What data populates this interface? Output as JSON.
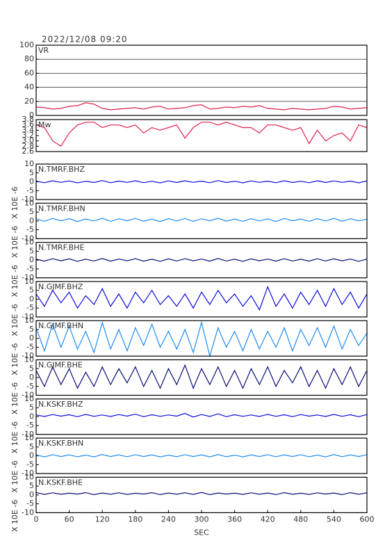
{
  "chart_data": [
    {
      "type": "line",
      "title": "2022/12/08 09:20",
      "label": "VR",
      "xlim": [
        0,
        600
      ],
      "ylim": [
        0,
        100
      ],
      "yticks": [
        0,
        20,
        40,
        60,
        80,
        100
      ],
      "grid": true,
      "x": [
        0,
        15,
        30,
        45,
        60,
        75,
        90,
        105,
        120,
        135,
        150,
        165,
        180,
        195,
        210,
        225,
        240,
        255,
        270,
        285,
        300,
        315,
        330,
        345,
        360,
        375,
        390,
        405,
        420,
        435,
        450,
        465,
        480,
        495,
        510,
        525,
        540,
        555,
        570,
        585,
        600
      ],
      "series": [
        {
          "name": "VR",
          "color": "#e0204a",
          "values": [
            12,
            11,
            9,
            10,
            13,
            14,
            18,
            16,
            10,
            8,
            9,
            10,
            11,
            9,
            12,
            13,
            9,
            10,
            11,
            14,
            15,
            9,
            10,
            12,
            11,
            13,
            12,
            14,
            10,
            9,
            8,
            10,
            9,
            8,
            9,
            10,
            13,
            12,
            9,
            10,
            11
          ]
        }
      ]
    },
    {
      "type": "line",
      "label": "Mw",
      "xlim": [
        0,
        600
      ],
      "ylim": [
        2.6,
        3.8
      ],
      "yticks": [
        2.6,
        2.8,
        {
          "value": 3,
          "label": "3.0"
        },
        3.2,
        3.4,
        3.6,
        3.8
      ],
      "grid": false,
      "x": [
        0,
        15,
        30,
        45,
        60,
        75,
        90,
        105,
        120,
        135,
        150,
        165,
        180,
        195,
        210,
        225,
        240,
        255,
        270,
        285,
        300,
        315,
        330,
        345,
        360,
        375,
        390,
        405,
        420,
        435,
        450,
        465,
        480,
        495,
        510,
        525,
        540,
        555,
        570,
        585,
        600
      ],
      "series": [
        {
          "name": "Mw",
          "color": "#e0204a",
          "values": [
            3.6,
            3.5,
            3.0,
            2.8,
            3.3,
            3.6,
            3.7,
            3.7,
            3.5,
            3.6,
            3.6,
            3.5,
            3.6,
            3.3,
            3.5,
            3.4,
            3.5,
            3.6,
            3.1,
            3.5,
            3.7,
            3.7,
            3.6,
            3.7,
            3.6,
            3.5,
            3.5,
            3.3,
            3.6,
            3.6,
            3.5,
            3.4,
            3.5,
            2.9,
            3.4,
            3.0,
            3.2,
            3.3,
            3.0,
            3.6,
            3.5
          ]
        }
      ]
    },
    {
      "type": "line",
      "label": "N.TMRF.BHZ",
      "ylabel": "X 10E -6",
      "xlim": [
        0,
        600
      ],
      "ylim": [
        -10,
        10
      ],
      "yticks": [
        -10,
        -5,
        0,
        5,
        10
      ],
      "x": [
        0,
        15,
        30,
        45,
        60,
        75,
        90,
        105,
        120,
        135,
        150,
        165,
        180,
        195,
        210,
        225,
        240,
        255,
        270,
        285,
        300,
        315,
        330,
        345,
        360,
        375,
        390,
        405,
        420,
        435,
        450,
        465,
        480,
        495,
        510,
        525,
        540,
        555,
        570,
        585,
        600
      ],
      "series": [
        {
          "name": "N.TMRF.BHZ",
          "color": "#0a0ae0",
          "values": [
            0.4,
            -0.5,
            0.6,
            -0.3,
            0.5,
            -0.6,
            0.3,
            -0.4,
            0.7,
            -0.5,
            0.4,
            -0.3,
            0.6,
            -0.5,
            0.3,
            -0.6,
            0.5,
            -0.4,
            0.6,
            -0.3,
            0.4,
            -0.5,
            0.7,
            -0.4,
            0.3,
            -0.6,
            0.5,
            -0.3,
            0.4,
            -0.5,
            0.6,
            -0.4,
            0.3,
            -0.5,
            0.6,
            -0.4,
            0.5,
            -0.3,
            0.4,
            -0.6,
            0.5
          ]
        }
      ]
    },
    {
      "type": "line",
      "label": "N.TMRF.BHN",
      "ylabel": "X 10E -6",
      "xlim": [
        0,
        600
      ],
      "ylim": [
        -10,
        10
      ],
      "yticks": [
        -10,
        -5,
        0,
        5,
        10
      ],
      "x": [
        0,
        15,
        30,
        45,
        60,
        75,
        90,
        105,
        120,
        135,
        150,
        165,
        180,
        195,
        210,
        225,
        240,
        255,
        270,
        285,
        300,
        315,
        330,
        345,
        360,
        375,
        390,
        405,
        420,
        435,
        450,
        465,
        480,
        495,
        510,
        525,
        540,
        555,
        570,
        585,
        600
      ],
      "series": [
        {
          "name": "N.TMRF.BHN",
          "color": "#1e8cf0",
          "values": [
            1.2,
            -0.2,
            1.4,
            0.1,
            1.3,
            -0.3,
            1.1,
            0.0,
            1.5,
            -0.2,
            1.2,
            0.1,
            1.4,
            -0.1,
            1.0,
            -0.3,
            1.3,
            0.0,
            1.4,
            -0.2,
            1.2,
            0.1,
            1.5,
            -0.1,
            1.1,
            -0.2,
            1.3,
            0.0,
            1.2,
            -0.3,
            1.4,
            0.1,
            1.1,
            -0.2,
            1.3,
            0.0,
            1.5,
            -0.1,
            1.2,
            0.1,
            1.0
          ]
        }
      ]
    },
    {
      "type": "line",
      "label": "N.TMRF.BHE",
      "ylabel": "X 10E -6",
      "xlim": [
        0,
        600
      ],
      "ylim": [
        -10,
        10
      ],
      "yticks": [
        -10,
        -5,
        0,
        5,
        10
      ],
      "x": [
        0,
        15,
        30,
        45,
        60,
        75,
        90,
        105,
        120,
        135,
        150,
        165,
        180,
        195,
        210,
        225,
        240,
        255,
        270,
        285,
        300,
        315,
        330,
        345,
        360,
        375,
        390,
        405,
        420,
        435,
        450,
        465,
        480,
        495,
        510,
        525,
        540,
        555,
        570,
        585,
        600
      ],
      "series": [
        {
          "name": "N.TMRF.BHE",
          "color": "#0a0a78",
          "values": [
            0.6,
            -0.6,
            0.8,
            -0.4,
            0.7,
            -0.7,
            0.5,
            -0.5,
            0.9,
            -0.6,
            0.6,
            -0.4,
            0.8,
            -0.6,
            0.5,
            -0.7,
            0.7,
            -0.5,
            0.8,
            -0.4,
            0.6,
            -0.6,
            0.9,
            -0.5,
            0.5,
            -0.7,
            0.7,
            -0.4,
            0.6,
            -0.6,
            0.8,
            -0.5,
            0.5,
            -0.6,
            0.8,
            -0.5,
            0.7,
            -0.4,
            0.6,
            -0.7,
            0.6
          ]
        }
      ]
    },
    {
      "type": "line",
      "label": "N.GJMF.BHZ",
      "ylabel": "X 10E -6",
      "xlim": [
        0,
        600
      ],
      "ylim": [
        -10,
        10
      ],
      "yticks": [
        -10,
        -5,
        0,
        5,
        10
      ],
      "x": [
        0,
        15,
        30,
        45,
        60,
        75,
        90,
        105,
        120,
        135,
        150,
        165,
        180,
        195,
        210,
        225,
        240,
        255,
        270,
        285,
        300,
        315,
        330,
        345,
        360,
        375,
        390,
        405,
        420,
        435,
        450,
        465,
        480,
        495,
        510,
        525,
        540,
        555,
        570,
        585,
        600
      ],
      "series": [
        {
          "name": "N.GJMF.BHZ",
          "color": "#0a0ae0",
          "values": [
            3,
            -4,
            5,
            -2,
            4,
            -5,
            2,
            -3,
            6,
            -4,
            3,
            -5,
            4,
            -2,
            5,
            -3,
            2,
            -4,
            3,
            -5,
            4,
            -3,
            5,
            -2,
            3,
            -4,
            2,
            -6,
            7,
            -4,
            3,
            -5,
            4,
            -3,
            5,
            -4,
            6,
            -3,
            4,
            -5,
            3
          ]
        }
      ]
    },
    {
      "type": "line",
      "label": "N.GJMF.BHN",
      "ylabel": "X 10E -6",
      "xlim": [
        0,
        600
      ],
      "ylim": [
        -10,
        10
      ],
      "yticks": [
        -10,
        -5,
        0,
        5,
        10
      ],
      "x": [
        0,
        15,
        30,
        45,
        60,
        75,
        90,
        105,
        120,
        135,
        150,
        165,
        180,
        195,
        210,
        225,
        240,
        255,
        270,
        285,
        300,
        315,
        330,
        345,
        360,
        375,
        390,
        405,
        420,
        435,
        450,
        465,
        480,
        495,
        510,
        525,
        540,
        555,
        570,
        585,
        600
      ],
      "series": [
        {
          "name": "N.GJMF.BHN",
          "color": "#1e8cf0",
          "values": [
            6,
            -7,
            8,
            -5,
            7,
            -6,
            4,
            -8,
            9,
            -6,
            5,
            -7,
            6,
            -4,
            8,
            -5,
            4,
            -6,
            5,
            -8,
            9,
            -10,
            6,
            -5,
            4,
            -7,
            5,
            -6,
            4,
            -5,
            6,
            -7,
            5,
            -4,
            6,
            -5,
            7,
            -6,
            5,
            -4,
            3
          ]
        }
      ]
    },
    {
      "type": "line",
      "label": "N.GJMF.BHE",
      "ylabel": "X 10E -6",
      "xlim": [
        0,
        600
      ],
      "ylim": [
        -10,
        10
      ],
      "yticks": [
        -10,
        -5,
        0,
        5,
        10
      ],
      "x": [
        0,
        15,
        30,
        45,
        60,
        75,
        90,
        105,
        120,
        135,
        150,
        165,
        180,
        195,
        210,
        225,
        240,
        255,
        270,
        285,
        300,
        315,
        330,
        345,
        360,
        375,
        390,
        405,
        420,
        435,
        450,
        465,
        480,
        495,
        510,
        525,
        540,
        555,
        570,
        585,
        600
      ],
      "series": [
        {
          "name": "N.GJMF.BHE",
          "color": "#0a0a78",
          "values": [
            4,
            -5,
            6,
            -4,
            5,
            -6,
            3,
            -5,
            6,
            -4,
            5,
            -3,
            6,
            -5,
            4,
            -6,
            5,
            -4,
            7,
            -6,
            5,
            -4,
            6,
            -5,
            4,
            -6,
            5,
            -4,
            6,
            -5,
            4,
            -3,
            6,
            -5,
            4,
            -6,
            5,
            -4,
            6,
            -5,
            4
          ]
        }
      ]
    },
    {
      "type": "line",
      "label": "N.KSKF.BHZ",
      "ylabel": "X 10E -6",
      "xlim": [
        0,
        600
      ],
      "ylim": [
        -10,
        10
      ],
      "yticks": [
        -10,
        -5,
        0,
        5,
        10
      ],
      "x": [
        0,
        15,
        30,
        45,
        60,
        75,
        90,
        105,
        120,
        135,
        150,
        165,
        180,
        195,
        210,
        225,
        240,
        255,
        270,
        285,
        300,
        315,
        330,
        345,
        360,
        375,
        390,
        405,
        420,
        435,
        450,
        465,
        480,
        495,
        510,
        525,
        540,
        555,
        570,
        585,
        600
      ],
      "series": [
        {
          "name": "N.KSKF.BHZ",
          "color": "#0a0ae0",
          "values": [
            1.0,
            0.1,
            1.2,
            0.3,
            1.1,
            0.0,
            1.3,
            0.2,
            1.0,
            0.1,
            1.2,
            0.3,
            1.4,
            0.0,
            1.1,
            0.2,
            1.0,
            0.3,
            1.8,
            -0.2,
            1.2,
            0.1,
            1.6,
            0.0,
            1.1,
            0.2,
            1.0,
            0.1,
            1.3,
            0.2,
            1.1,
            0.0,
            1.2,
            0.3,
            1.0,
            0.1,
            1.3,
            0.2,
            1.1,
            0.0,
            1.2
          ]
        }
      ]
    },
    {
      "type": "line",
      "label": "N.KSKF.BHN",
      "ylabel": "X 10E -6",
      "xlim": [
        0,
        600
      ],
      "ylim": [
        -10,
        10
      ],
      "yticks": [
        -10,
        -5,
        0,
        5,
        10
      ],
      "x": [
        0,
        15,
        30,
        45,
        60,
        75,
        90,
        105,
        120,
        135,
        150,
        165,
        180,
        195,
        210,
        225,
        240,
        255,
        270,
        285,
        300,
        315,
        330,
        345,
        360,
        375,
        390,
        405,
        420,
        435,
        450,
        465,
        480,
        495,
        510,
        525,
        540,
        555,
        570,
        585,
        600
      ],
      "series": [
        {
          "name": "N.KSKF.BHN",
          "color": "#1e8cf0",
          "values": [
            0.5,
            -0.6,
            0.6,
            -0.4,
            0.5,
            -0.5,
            0.4,
            -0.6,
            0.7,
            -0.4,
            0.5,
            -0.5,
            0.6,
            -0.4,
            0.5,
            -0.6,
            0.4,
            -0.5,
            0.6,
            -0.4,
            0.5,
            -0.6,
            0.7,
            -0.5,
            0.4,
            -0.6,
            0.5,
            -0.4,
            0.6,
            -0.5,
            0.5,
            -0.4,
            0.6,
            -0.5,
            0.4,
            -0.6,
            0.7,
            -0.5,
            0.5,
            -0.4,
            0.6
          ]
        }
      ]
    },
    {
      "type": "line",
      "label": "N.KSKF.BHE",
      "ylabel": "X 10E -6",
      "xlim": [
        0,
        600
      ],
      "ylim": [
        -10,
        10
      ],
      "yticks": [
        -10,
        -5,
        0,
        5,
        10
      ],
      "xticks": [
        0,
        60,
        120,
        180,
        240,
        300,
        360,
        420,
        480,
        540,
        600
      ],
      "xlabel": "SEC",
      "x": [
        0,
        15,
        30,
        45,
        60,
        75,
        90,
        105,
        120,
        135,
        150,
        165,
        180,
        195,
        210,
        225,
        240,
        255,
        270,
        285,
        300,
        315,
        330,
        345,
        360,
        375,
        390,
        405,
        420,
        435,
        450,
        465,
        480,
        495,
        510,
        525,
        540,
        555,
        570,
        585,
        600
      ],
      "series": [
        {
          "name": "N.KSKF.BHE",
          "color": "#0a0a78",
          "values": [
            1.4,
            0.3,
            1.2,
            0.4,
            1.0,
            0.5,
            1.3,
            0.2,
            1.1,
            0.4,
            1.2,
            0.3,
            1.0,
            0.5,
            1.3,
            0.2,
            1.1,
            0.4,
            1.2,
            0.3,
            1.4,
            0.2,
            1.1,
            0.5,
            1.0,
            0.3,
            1.2,
            0.4,
            1.1,
            0.2,
            1.3,
            0.4,
            1.0,
            0.3,
            1.2,
            0.5,
            1.1,
            0.2,
            1.3,
            0.4,
            1.2
          ]
        }
      ]
    }
  ]
}
